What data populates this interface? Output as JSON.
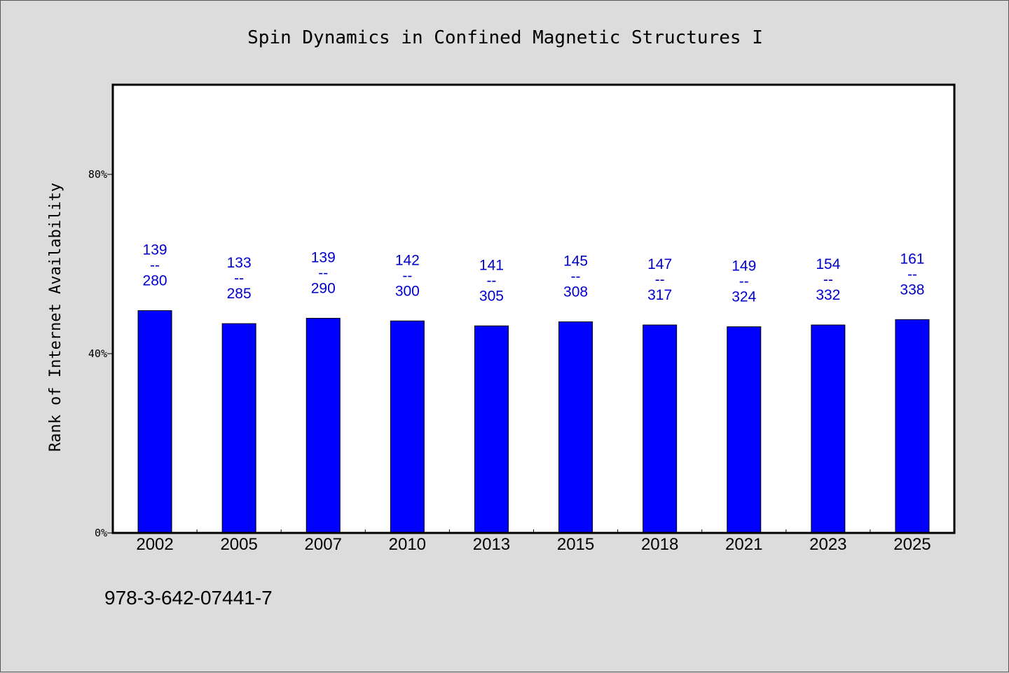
{
  "chart_data": {
    "type": "bar",
    "title": "Spin Dynamics in Confined Magnetic Structures I",
    "xlabel": "",
    "ylabel": "Rank of Internet Availability",
    "categories": [
      "2002",
      "2005",
      "2007",
      "2010",
      "2013",
      "2015",
      "2018",
      "2021",
      "2023",
      "2025"
    ],
    "values": [
      0.496,
      0.467,
      0.479,
      0.473,
      0.462,
      0.471,
      0.464,
      0.46,
      0.464,
      0.476
    ],
    "data_labels": [
      {
        "top": "139",
        "mid": "--",
        "bottom": "280"
      },
      {
        "top": "133",
        "mid": "--",
        "bottom": "285"
      },
      {
        "top": "139",
        "mid": "--",
        "bottom": "290"
      },
      {
        "top": "142",
        "mid": "--",
        "bottom": "300"
      },
      {
        "top": "141",
        "mid": "--",
        "bottom": "305"
      },
      {
        "top": "145",
        "mid": "--",
        "bottom": "308"
      },
      {
        "top": "147",
        "mid": "--",
        "bottom": "317"
      },
      {
        "top": "149",
        "mid": "--",
        "bottom": "324"
      },
      {
        "top": "154",
        "mid": "--",
        "bottom": "332"
      },
      {
        "top": "161",
        "mid": "--",
        "bottom": "338"
      }
    ],
    "y_ticks": [
      {
        "value": 0,
        "label": "0%"
      },
      {
        "value": 0.4,
        "label": "40%"
      },
      {
        "value": 0.8,
        "label": "80%"
      }
    ],
    "ylim": [
      0,
      1
    ],
    "bar_color": "#0000ff",
    "label_color": "#0000cc",
    "grid": false,
    "legend": "none"
  },
  "footer": {
    "isbn": "978-3-642-07441-7"
  },
  "colors": {
    "background": "#dcdcdc",
    "plot_background": "#ffffff"
  }
}
